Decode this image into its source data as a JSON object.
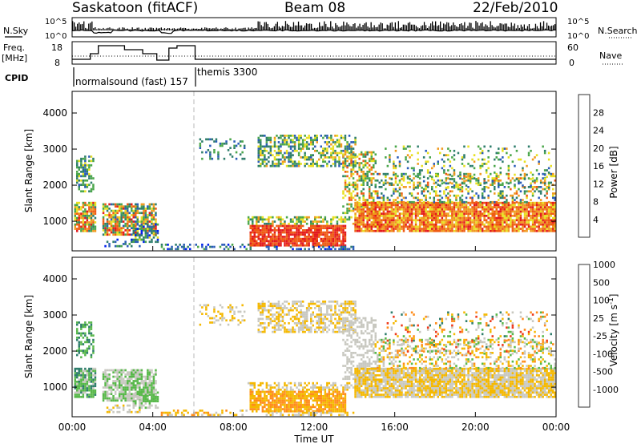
{
  "header": {
    "station": "Saskatoon (fitACF)",
    "beam": "Beam 08",
    "date": "22/Feb/2010"
  },
  "top_panels": {
    "nsky_label": "N.Sky",
    "nsearch_label": "N.Search",
    "freq_label_1": "Freq.",
    "freq_label_2": "[MHz]",
    "nave_label": "Nave",
    "cpid_label": "CPID",
    "nsky_ticks": [
      "10^5",
      "10^0"
    ],
    "nsearch_ticks": [
      "10^5",
      "10^0"
    ],
    "freq_ticks": [
      "18",
      "8"
    ],
    "nave_ticks": [
      "60",
      "0"
    ],
    "cpid_segments": [
      {
        "text": "normalsound (fast) 157",
        "start_h": 0.9
      },
      {
        "text": "themis 3300",
        "start_h": 6.1
      }
    ]
  },
  "chart_data": [
    {
      "type": "heatmap",
      "name": "power",
      "xlabel": "",
      "ylabel": "Slant Range [km]",
      "yticks": [
        "1000",
        "2000",
        "3000",
        "4000"
      ],
      "ylim": [
        180,
        4600
      ],
      "xlim": [
        0,
        24
      ],
      "colorbar": {
        "label": "Power [dB]",
        "ticks": [
          "4",
          "8",
          "12",
          "16",
          "20",
          "24",
          "28"
        ],
        "range": [
          0,
          32
        ],
        "colors": [
          "#0022ee",
          "#2a5cb8",
          "#2e7d6b",
          "#4aa64a",
          "#e8e020",
          "#f09a1e",
          "#ef5b14",
          "#e31a1c"
        ]
      }
    },
    {
      "type": "heatmap",
      "name": "velocity",
      "xlabel": "Time UT",
      "ylabel": "Slant Range [km]",
      "yticks": [
        "1000",
        "2000",
        "3000",
        "4000"
      ],
      "ylim": [
        180,
        4600
      ],
      "xlim": [
        0,
        24
      ],
      "xticks": [
        "00:00",
        "04:00",
        "08:00",
        "12:00",
        "16:00",
        "20:00",
        "00:00"
      ],
      "colorbar": {
        "label": "Velocity [m s^-1]",
        "ticks": [
          "1000",
          "500",
          "100",
          "25",
          "-25",
          "-100",
          "-500",
          "-1000"
        ],
        "colors": [
          "#1e3fb4",
          "#2e7d6b",
          "#58b84a",
          "#c8c8c0",
          "#f5b800",
          "#ff8c1a",
          "#ee3a1c",
          "#e31a1c"
        ]
      }
    }
  ]
}
